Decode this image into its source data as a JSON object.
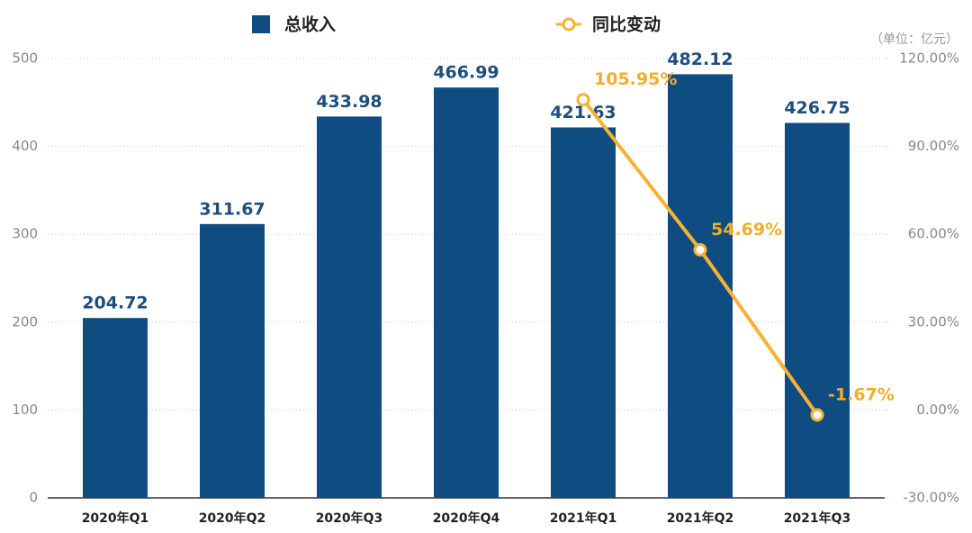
{
  "chart_data": {
    "type": "bar",
    "unit_label": "（单位：亿元）",
    "categories": [
      "2020年Q1",
      "2020年Q2",
      "2020年Q3",
      "2020年Q4",
      "2021年Q1",
      "2021年Q2",
      "2021年Q3"
    ],
    "series": [
      {
        "name": "总收入",
        "type": "bar",
        "color": "#0f4c81",
        "label_color": "#1d4e7e",
        "values": [
          204.72,
          311.67,
          433.98,
          466.99,
          421.63,
          482.12,
          426.75
        ]
      },
      {
        "name": "同比变动",
        "type": "line",
        "axis": "y2",
        "color": "#f5b335",
        "label_color": "#f0ae2a",
        "values": [
          null,
          null,
          null,
          null,
          105.95,
          54.69,
          -1.67
        ],
        "value_labels": [
          null,
          null,
          null,
          null,
          "105.95%",
          "54.69%",
          "-1.67%"
        ]
      }
    ],
    "ylim": [
      0,
      500
    ],
    "yticks": [
      0,
      100,
      200,
      300,
      400,
      500
    ],
    "y2lim": [
      -30,
      120
    ],
    "y2ticks": [
      {
        "value": -30,
        "label": "-30.00%"
      },
      {
        "value": 0,
        "label": "0.00%"
      },
      {
        "value": 30,
        "label": "30.00%"
      },
      {
        "value": 60,
        "label": "60.00%"
      },
      {
        "value": 90,
        "label": "90.00%"
      },
      {
        "value": 120,
        "label": "120.00%"
      }
    ],
    "grid": true
  }
}
